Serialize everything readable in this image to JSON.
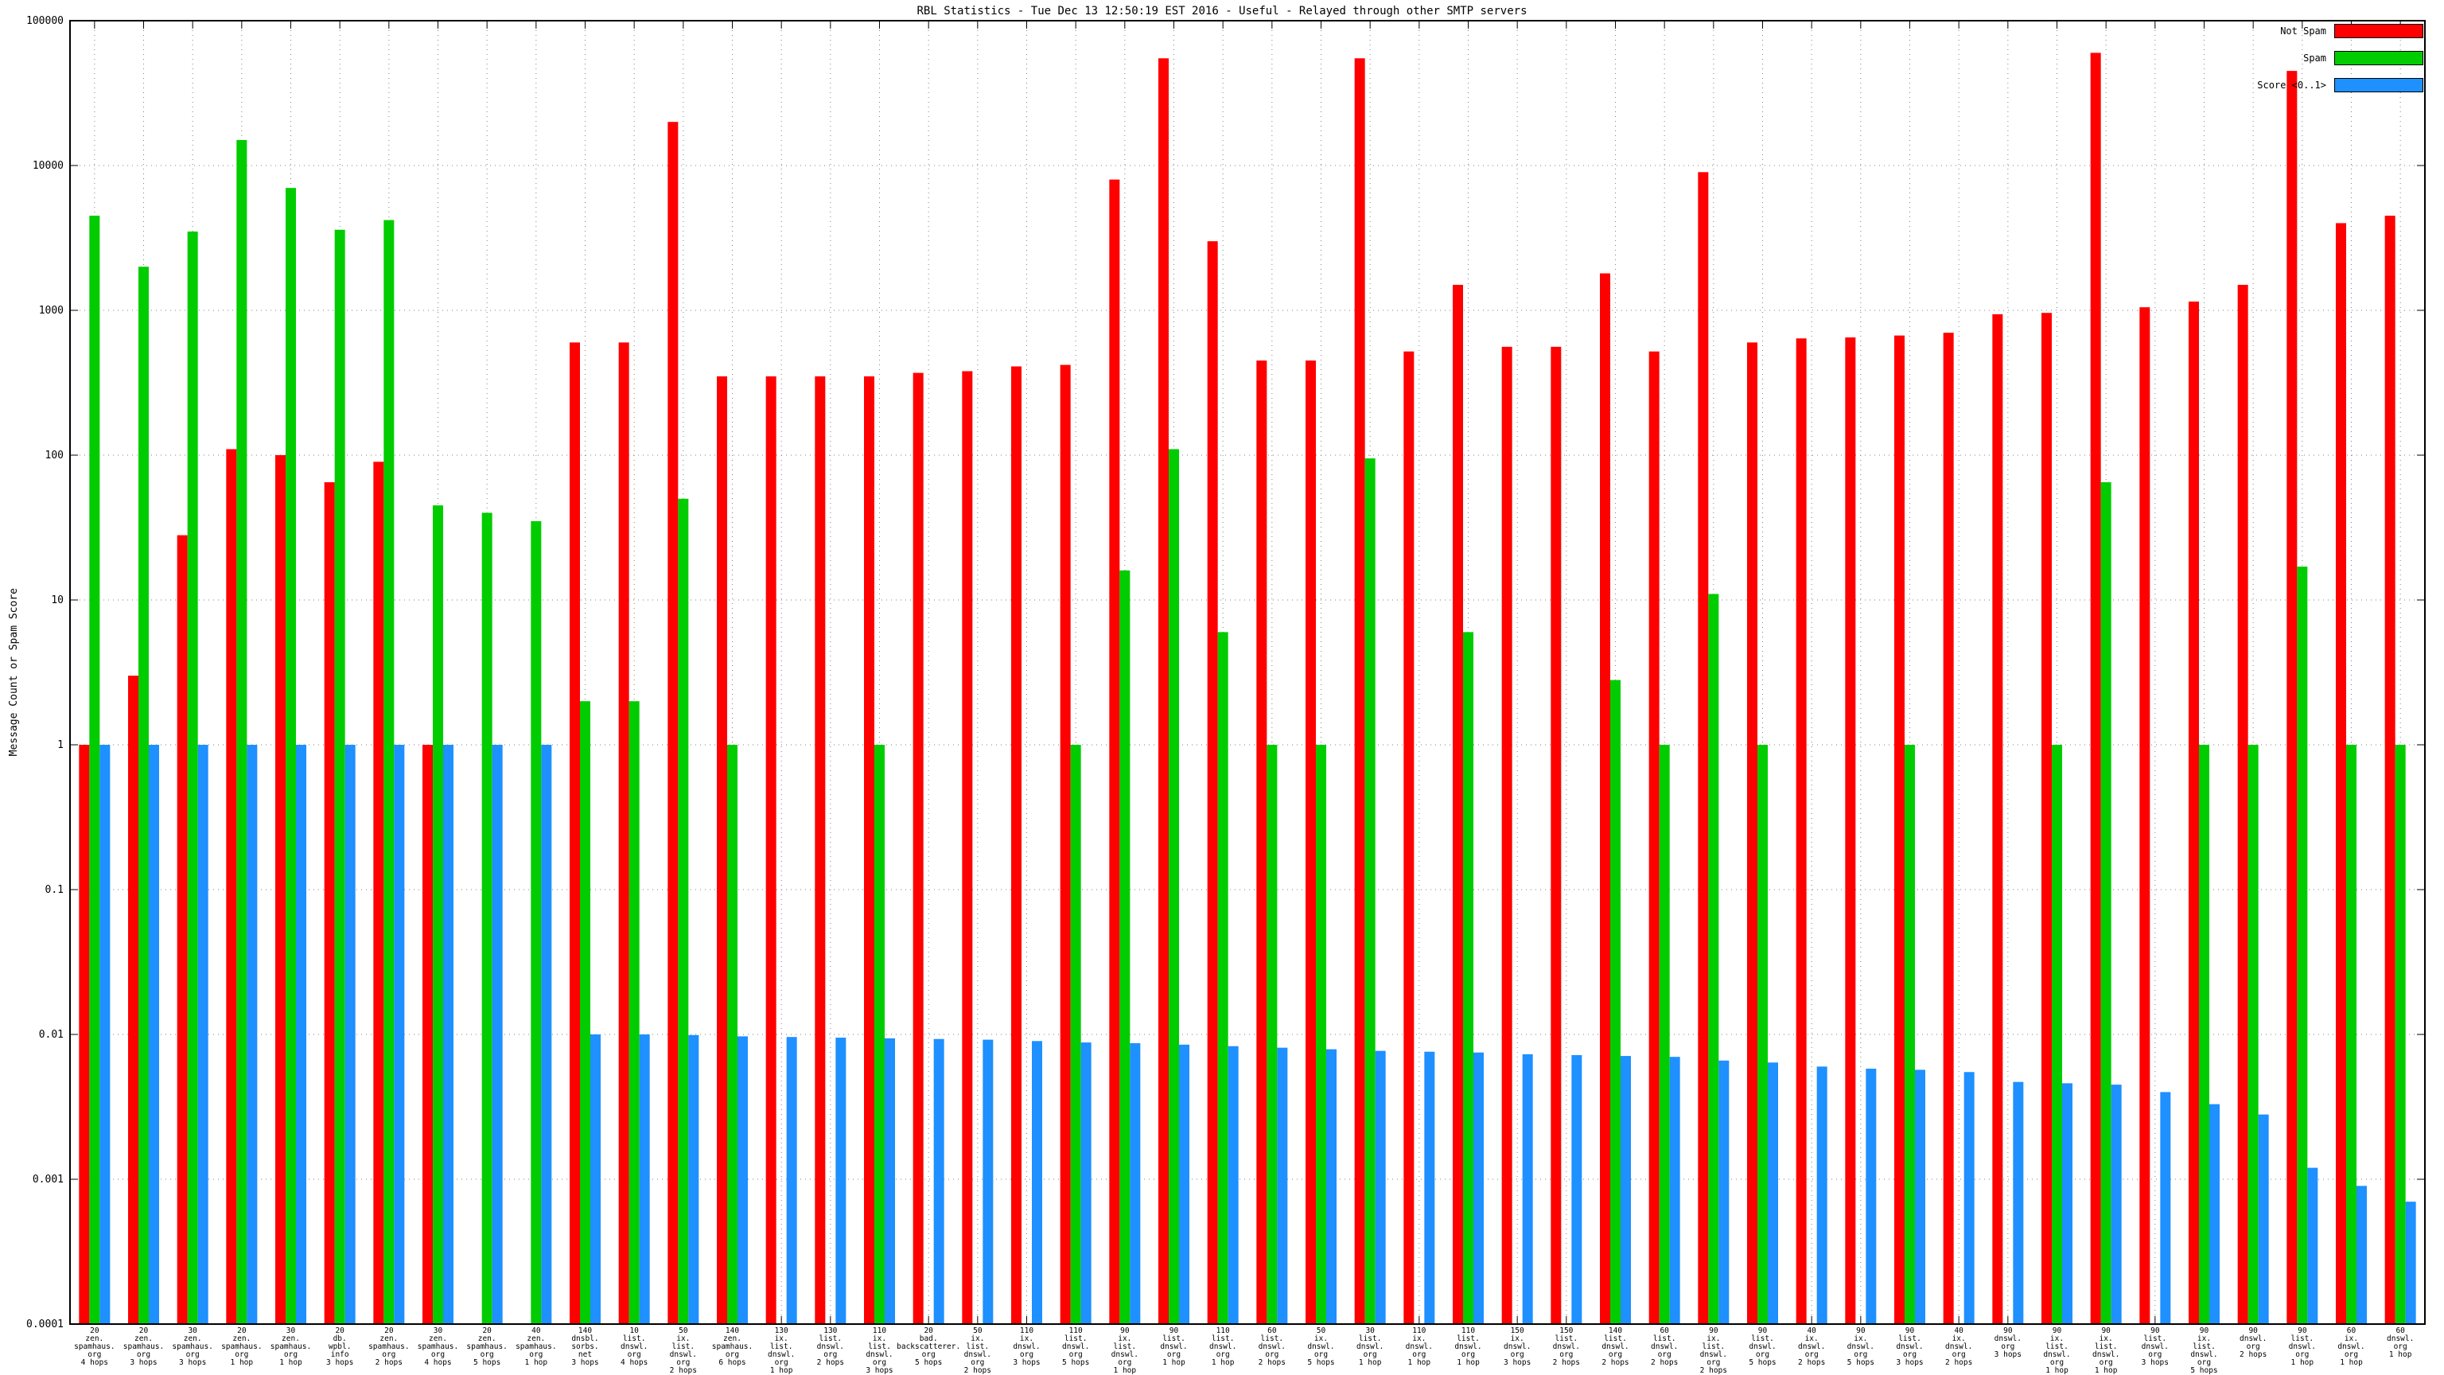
{
  "title": "RBL Statistics - Tue Dec 13 12:50:19 EST 2016 - Useful - Relayed through other SMTP servers",
  "ylabel": "Message Count or Spam Score",
  "legend": [
    {
      "label": "Not Spam",
      "color": "#ff0000"
    },
    {
      "label": "Spam",
      "color": "#00cc00"
    },
    {
      "label": "Score <0..1>",
      "color": "#1e90ff"
    }
  ],
  "chart_data": {
    "type": "bar",
    "log_scale_y": true,
    "ylim": [
      0.0001,
      100000
    ],
    "ytick_labels": [
      "0.0001",
      "0.001",
      "0.01",
      "0.1",
      "1",
      "10",
      "100",
      "1000",
      "10000",
      "100000"
    ],
    "grid": true,
    "legend_position": "top-right",
    "background": "#ffffff",
    "categories": [
      "20\nzen.\nspamhaus.\norg\n4 hops",
      "20\nzen.\nspamhaus.\norg\n3 hops",
      "30\nzen.\nspamhaus.\norg\n3 hops",
      "20\nzen.\nspamhaus.\norg\n1 hop",
      "30\nzen.\nspamhaus.\norg\n1 hop",
      "20\ndb.\nwpbl.\ninfo\n3 hops",
      "20\nzen.\nspamhaus.\norg\n2 hops",
      "30\nzen.\nspamhaus.\norg\n4 hops",
      "20\nzen.\nspamhaus.\norg\n5 hops",
      "40\nzen.\nspamhaus.\norg\n1 hop",
      "140\ndnsbl.\nsorbs.\nnet\n3 hops",
      "10\nlist.\ndnswl.\norg\n4 hops",
      "50\nix.\nlist.\ndnswl.\norg\n2 hops",
      "140\nzen.\nspamhaus.\norg\n6 hops",
      "130\nix.\nlist.\ndnswl.\norg\n1 hop",
      "130\nlist.\ndnswl.\norg\n2 hops",
      "110\nix.\nlist.\ndnswl.\norg\n3 hops",
      "20\nbad.\nbackscatterer.\norg\n5 hops",
      "50\nix.\nlist.\ndnswl.\norg\n2 hops",
      "110\nix.\ndnswl.\norg\n3 hops",
      "110\nlist.\ndnswl.\norg\n5 hops",
      "90\nix.\nlist.\ndnswl.\norg\n1 hop",
      "90\nlist.\ndnswl.\norg\n1 hop",
      "110\nlist.\ndnswl.\norg\n1 hop",
      "60\nlist.\ndnswl.\norg\n2 hops",
      "50\nix.\ndnswl.\norg\n5 hops",
      "30\nlist.\ndnswl.\norg\n1 hop",
      "110\nix.\ndnswl.\norg\n1 hop",
      "110\nlist.\ndnswl.\norg\n1 hop",
      "150\nix.\ndnswl.\norg\n3 hops",
      "150\nlist.\ndnswl.\norg\n2 hops",
      "140\nlist.\ndnswl.\norg\n2 hops",
      "60\nlist.\ndnswl.\norg\n2 hops",
      "90\nix.\nlist.\ndnswl.\norg\n2 hops",
      "90\nlist.\ndnswl.\norg\n5 hops",
      "40\nix.\ndnswl.\norg\n2 hops",
      "90\nix.\ndnswl.\norg\n5 hops",
      "90\nlist.\ndnswl.\norg\n3 hops",
      "40\nix.\ndnswl.\norg\n2 hops",
      "90\ndnswl.\norg\n3 hops",
      "90\nix.\nlist.\ndnswl.\norg\n1 hop",
      "90\nix.\nlist.\ndnswl.\norg\n1 hop",
      "90\nlist.\ndnswl.\norg\n3 hops",
      "90\nix.\nlist.\ndnswl.\norg\n5 hops",
      "90\ndnswl.\norg\n2 hops",
      "90\nlist.\ndnswl.\norg\n1 hop",
      "60\nix.\ndnswl.\norg\n1 hop",
      "60\ndnswl.\norg\n1 hop"
    ],
    "series": [
      {
        "name": "Not Spam",
        "color": "#ff0000",
        "values": [
          1,
          3,
          28,
          110,
          100,
          65,
          90,
          1,
          null,
          null,
          600,
          600,
          20000,
          350,
          350,
          350,
          350,
          370,
          380,
          410,
          420,
          8000,
          55000,
          3000,
          450,
          450,
          55000,
          520,
          1500,
          560,
          560,
          1800,
          520,
          9000,
          600,
          640,
          650,
          670,
          700,
          940,
          960,
          60000,
          1050,
          1150,
          1500,
          45000,
          4000,
          4500
        ]
      },
      {
        "name": "Spam",
        "color": "#00cc00",
        "values": [
          4500,
          2000,
          3500,
          15000,
          7000,
          3600,
          4200,
          45,
          40,
          35,
          2,
          2,
          50,
          1,
          null,
          null,
          1,
          null,
          null,
          null,
          1,
          16,
          110,
          6,
          1,
          1,
          95,
          null,
          6,
          null,
          null,
          2.8,
          1,
          11,
          1,
          null,
          null,
          1,
          null,
          null,
          1,
          65,
          null,
          1,
          1,
          17,
          1,
          1
        ]
      },
      {
        "name": "Score <0..1>",
        "color": "#1e90ff",
        "values": [
          1,
          1,
          1,
          1,
          1,
          1,
          1,
          1,
          1,
          1,
          0.01,
          0.01,
          0.0099,
          0.0097,
          0.0096,
          0.0095,
          0.0094,
          0.0093,
          0.0092,
          0.009,
          0.0088,
          0.0087,
          0.0085,
          0.0083,
          0.0081,
          0.0079,
          0.0077,
          0.0076,
          0.0075,
          0.0073,
          0.0072,
          0.0071,
          0.007,
          0.0066,
          0.0064,
          0.006,
          0.0058,
          0.0057,
          0.0055,
          0.0047,
          0.0046,
          0.0045,
          0.004,
          0.0033,
          0.0028,
          0.0012,
          0.0009,
          0.0007
        ]
      }
    ]
  }
}
